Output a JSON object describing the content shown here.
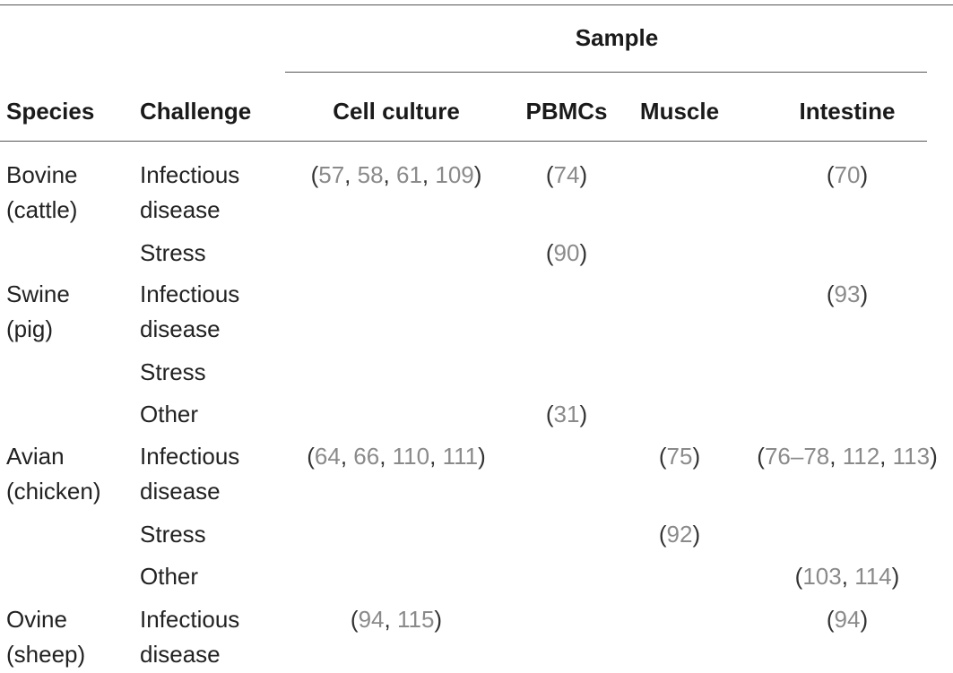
{
  "header": {
    "sample": "Sample",
    "species": "Species",
    "challenge": "Challenge",
    "columns": [
      "Cell culture",
      "PBMCs",
      "Muscle",
      "Intestine"
    ]
  },
  "rows": [
    {
      "species_line1": "Bovine",
      "species_line2": "(cattle)",
      "challenges": [
        {
          "line1": "Infectious",
          "line2": "disease",
          "cells": {
            "cell_culture": [
              "57",
              "58",
              "61",
              "109"
            ],
            "pbmcs": [
              "74"
            ],
            "muscle": [],
            "intestine": [
              "70"
            ]
          }
        },
        {
          "line1": "Stress",
          "line2": "",
          "cells": {
            "cell_culture": [],
            "pbmcs": [
              "90"
            ],
            "muscle": [],
            "intestine": []
          }
        }
      ]
    },
    {
      "species_line1": "Swine",
      "species_line2": "(pig)",
      "challenges": [
        {
          "line1": "Infectious",
          "line2": "disease",
          "cells": {
            "cell_culture": [],
            "pbmcs": [],
            "muscle": [],
            "intestine": [
              "93"
            ]
          }
        },
        {
          "line1": "Stress",
          "line2": "",
          "cells": {
            "cell_culture": [],
            "pbmcs": [],
            "muscle": [],
            "intestine": []
          }
        },
        {
          "line1": "Other",
          "line2": "",
          "cells": {
            "cell_culture": [],
            "pbmcs": [
              "31"
            ],
            "muscle": [],
            "intestine": []
          }
        }
      ]
    },
    {
      "species_line1": "Avian",
      "species_line2": "(chicken)",
      "challenges": [
        {
          "line1": "Infectious",
          "line2": "disease",
          "cells": {
            "cell_culture": [
              "64",
              "66",
              "110",
              "111"
            ],
            "pbmcs": [],
            "muscle": [
              "75"
            ],
            "intestine": [
              "76–78",
              "112",
              "113"
            ]
          }
        },
        {
          "line1": "Stress",
          "line2": "",
          "cells": {
            "cell_culture": [],
            "pbmcs": [],
            "muscle": [
              "92"
            ],
            "intestine": []
          }
        },
        {
          "line1": "Other",
          "line2": "",
          "cells": {
            "cell_culture": [],
            "pbmcs": [],
            "muscle": [],
            "intestine": [
              "103",
              "114"
            ]
          }
        }
      ]
    },
    {
      "species_line1": "Ovine",
      "species_line2": "(sheep)",
      "challenges": [
        {
          "line1": "Infectious",
          "line2": "disease",
          "cells": {
            "cell_culture": [
              "94",
              "115"
            ],
            "pbmcs": [],
            "muscle": [],
            "intestine": [
              "94"
            ]
          }
        }
      ]
    }
  ]
}
